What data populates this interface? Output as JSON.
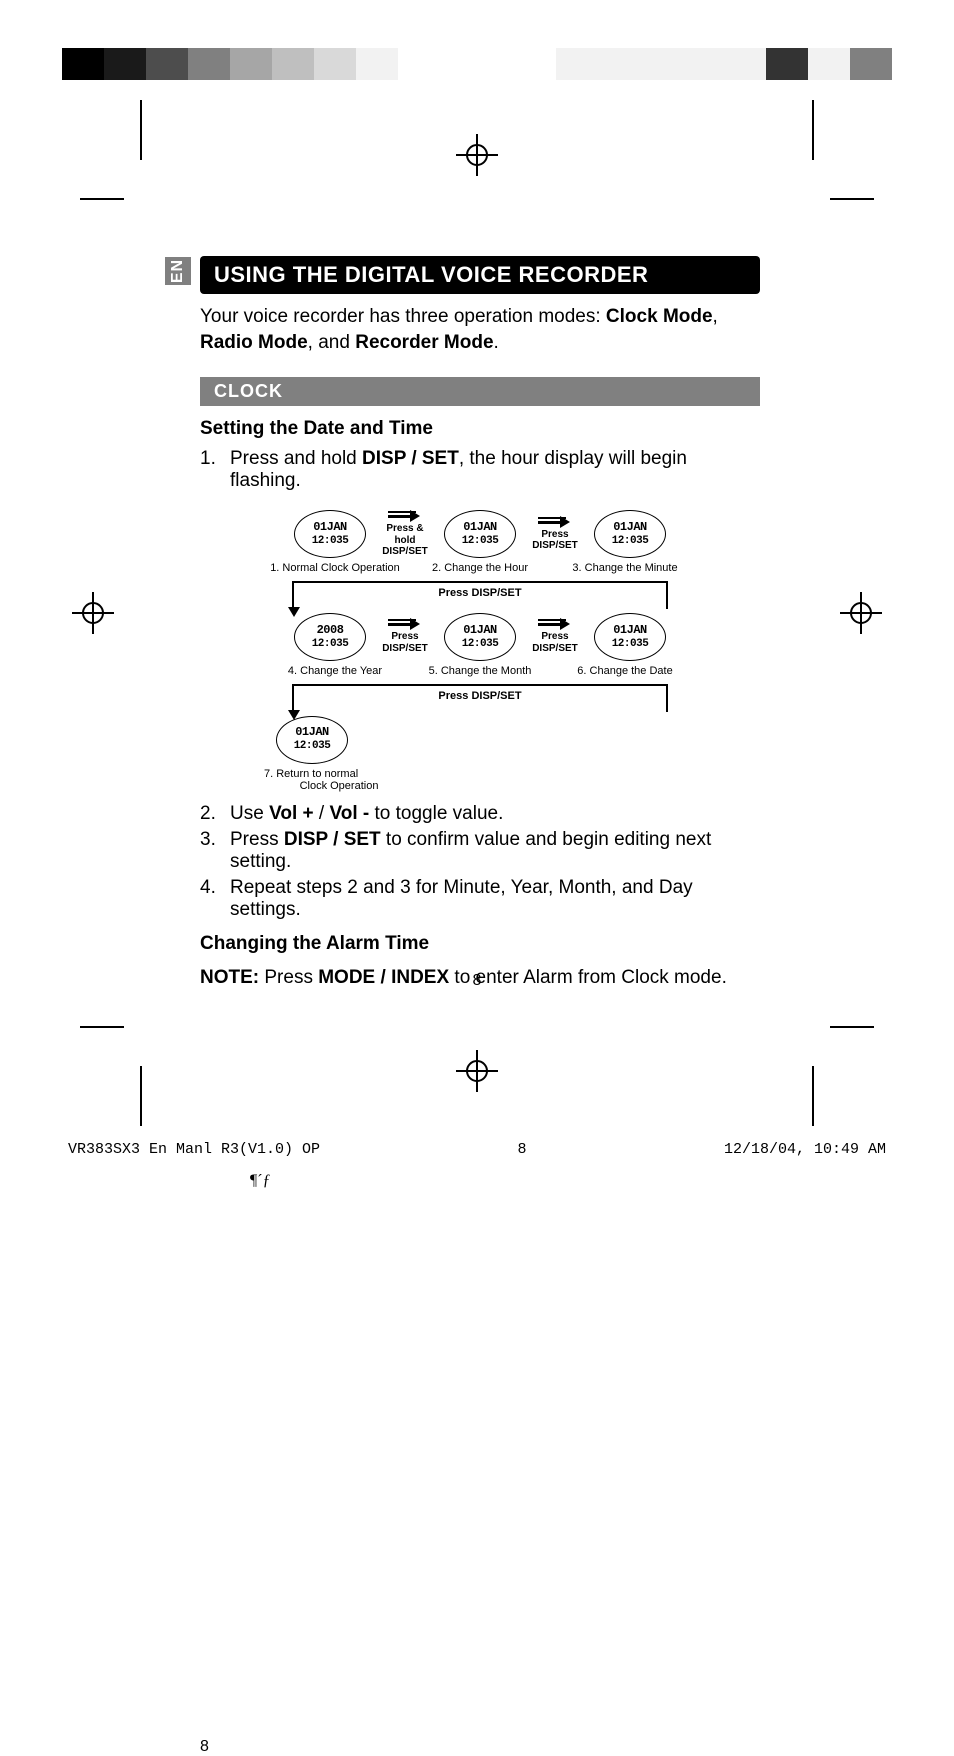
{
  "colorbars": {
    "left": [
      "#000000",
      "#1a1a1a",
      "#4d4d4d",
      "#808080",
      "#a6a6a6",
      "#bfbfbf",
      "#d9d9d9",
      "#f2f2f2"
    ],
    "right": [
      "#f2f2f2",
      "#f2f2f2",
      "#f2f2f2",
      "#f2f2f2",
      "#f2f2f2",
      "#333333",
      "#f2f2f2",
      "#808080"
    ]
  },
  "tab": "EN",
  "heading": "USING THE DIGITAL VOICE RECORDER",
  "intro_pre": "Your voice recorder has three operation modes: ",
  "intro_b1": "Clock Mode",
  "intro_mid1": ", ",
  "intro_b2": "Radio Mode",
  "intro_mid2": ", and ",
  "intro_b3": "Recorder Mode",
  "intro_end": ".",
  "section": "CLOCK",
  "subhead1": "Setting the Date and Time",
  "step1_num": "1.",
  "step1_pre": "Press and hold ",
  "step1_b": "DISP / SET",
  "step1_post": ", the hour display will begin flashing.",
  "diagram": {
    "oval_line1": "01JAN",
    "oval_line2_time": "12:035",
    "oval_year_line1": "2008",
    "arrow1_l1": "Press &",
    "arrow1_l2": "hold DISP/SET",
    "arrow2_l1": "Press",
    "arrow2_l2": "DISP/SET",
    "cap1": "1. Normal Clock Operation",
    "cap2": "2. Change the Hour",
    "cap3": "3. Change the Minute",
    "bridge1": "Press DISP/SET",
    "cap4": "4. Change the Year",
    "cap5": "5. Change the Month",
    "cap6": "6. Change the Date",
    "bridge2": "Press DISP/SET",
    "cap7a": "7.  Return to normal",
    "cap7b": "Clock Operation"
  },
  "step2_num": "2.",
  "step2_pre": "Use ",
  "step2_b1": "Vol +",
  "step2_mid": " / ",
  "step2_b2": "Vol -",
  "step2_post": " to toggle value.",
  "step3_num": "3.",
  "step3_pre": "Press ",
  "step3_b": "DISP / SET",
  "step3_post": " to confirm value and begin editing next setting.",
  "step4_num": "4.",
  "step4": "Repeat steps 2 and 3 for Minute, Year, Month, and Day settings.",
  "subhead2": "Changing the Alarm Time",
  "note_b1": "NOTE:",
  "note_mid": " Press ",
  "note_b2": "MODE / INDEX",
  "note_post": " to enter Alarm from Clock mode.",
  "pagenum": "8",
  "footer_left": "VR383SX3 En Manl R3(V1.0) OP",
  "footer_mid": "8",
  "footer_right": "12/18/04, 10:49 AM",
  "pilcrow": "¶´ƒ"
}
